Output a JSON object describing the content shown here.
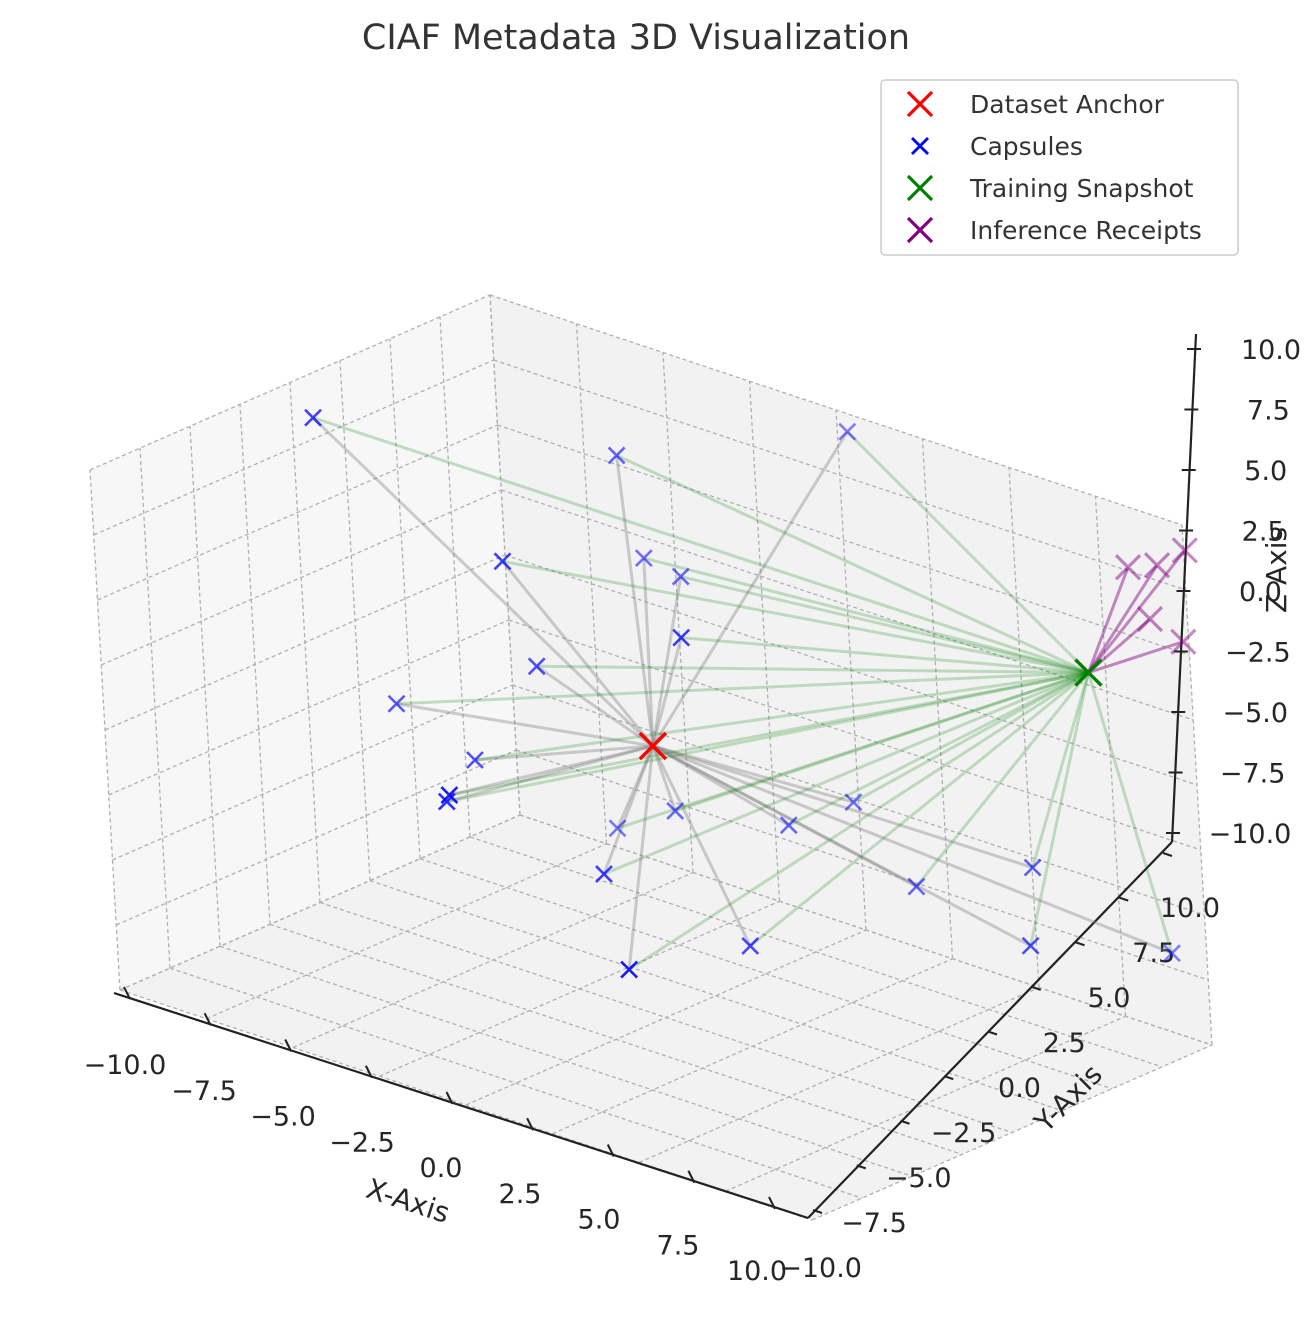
{
  "chart_data": {
    "type": "scatter",
    "projection": "3d",
    "title": "CIAF Metadata 3D Visualization",
    "xlabel": "X-Axis",
    "ylabel": "Y-Axis",
    "zlabel": "Z-Axis",
    "xlim": [
      -10,
      10
    ],
    "ylim": [
      -10,
      10
    ],
    "zlim": [
      -10,
      10
    ],
    "x_ticks": [
      "−10.0",
      "−7.5",
      "−5.0",
      "−2.5",
      "0.0",
      "2.5",
      "5.0",
      "7.5",
      "10.0"
    ],
    "y_ticks": [
      "−10.0",
      "−7.5",
      "−5.0",
      "−2.5",
      "0.0",
      "2.5",
      "5.0",
      "7.5",
      "10.0"
    ],
    "z_ticks": [
      "−10.0",
      "−7.5",
      "−5.0",
      "−2.5",
      "0.0",
      "2.5",
      "5.0",
      "7.5",
      "10.0"
    ],
    "grid": true,
    "legend_position": "top-right",
    "colors": {
      "anchor": "#ff0000",
      "capsule": "#0000ff",
      "snapshot": "#008000",
      "receipt": "#800080",
      "anchor_link": "#808080",
      "snapshot_link": "#008000",
      "receipt_link": "#800080"
    },
    "series": [
      {
        "name": "Dataset Anchor",
        "points": [
          [
            0.8,
            -1.2,
            1.2
          ]
        ]
      },
      {
        "name": "Capsules",
        "points": [
          [
            -3.8,
            -0.4,
            6.0
          ],
          [
            -3.4,
            4.8,
            8.5
          ],
          [
            -9.2,
            -0.3,
            9.1
          ],
          [
            0.9,
            9.0,
            9.9
          ],
          [
            -2.2,
            5.6,
            4.1
          ],
          [
            -2.5,
            -5.8,
            -0.6
          ],
          [
            2.0,
            -1.5,
            6.0
          ],
          [
            0.5,
            5.7,
            -4.3
          ],
          [
            4.4,
            5.3,
            -4.8
          ],
          [
            -6.4,
            2.0,
            -3.6
          ],
          [
            -5.7,
            7.6,
            -7.8
          ],
          [
            2.5,
            -5.8,
            -5.1
          ],
          [
            8.4,
            4.4,
            -2.0
          ],
          [
            -4.4,
            -2.8,
            -2.7
          ],
          [
            -4.3,
            1.8,
            1.0
          ],
          [
            2.0,
            1.0,
            -6.7
          ],
          [
            -1.1,
            -0.8,
            -4.7
          ],
          [
            9.9,
            1.6,
            -3.4
          ],
          [
            9.4,
            9.3,
            -6.5
          ],
          [
            -9.1,
            2.8,
            -2.9
          ],
          [
            -2.7,
            5.5,
            -5.1
          ],
          [
            1.6,
            7.1,
            -3.4
          ],
          [
            -3.8,
            6.5,
            3.8
          ]
        ]
      },
      {
        "name": "Training Snapshot",
        "points": [
          [
            8.2,
            8.0,
            4.2
          ]
        ]
      },
      {
        "name": "Inference Receipts",
        "points": [
          [
            8.7,
            9.4,
            8.0
          ],
          [
            9.8,
            9.0,
            8.7
          ],
          [
            10.1,
            9.9,
            9.1
          ],
          [
            9.5,
            9.0,
            6.5
          ],
          [
            9.9,
            9.9,
            5.5
          ]
        ]
      }
    ]
  }
}
